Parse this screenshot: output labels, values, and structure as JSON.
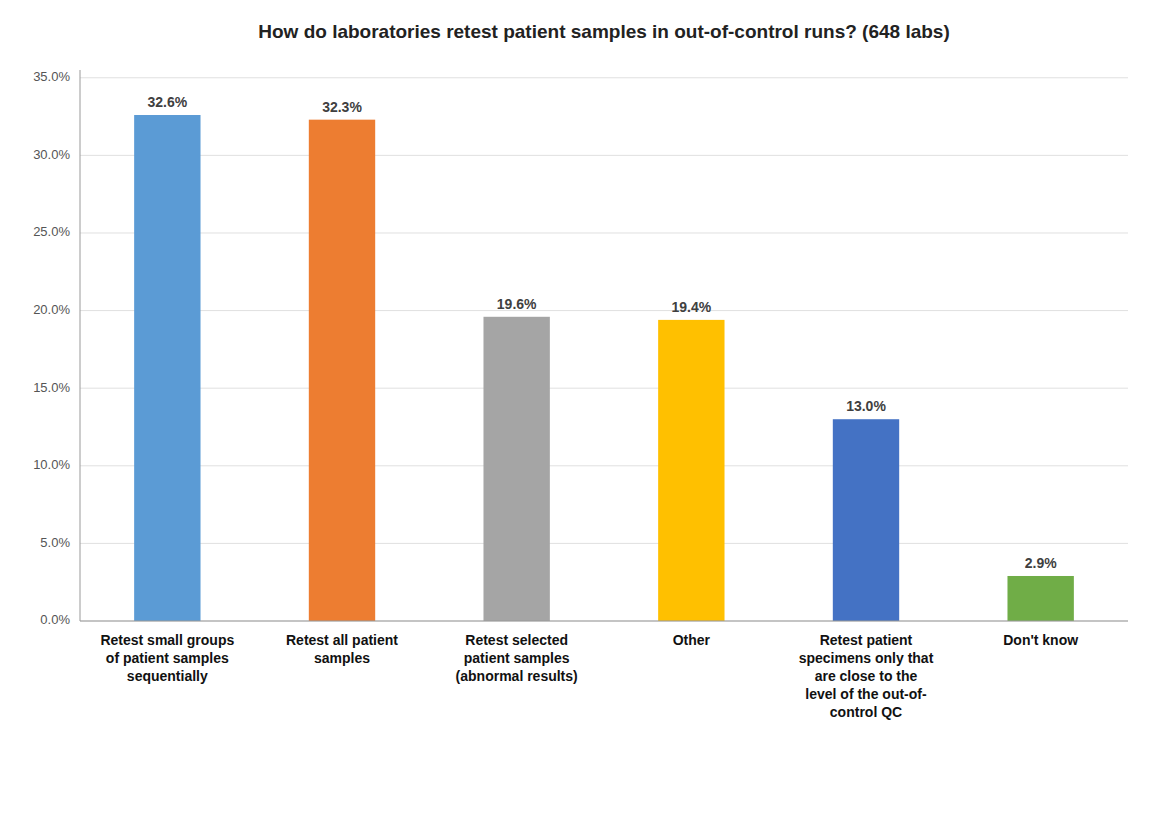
{
  "chart_data": {
    "type": "bar",
    "title": "How do laboratories retest patient samples in out-of-control runs? (648 labs)",
    "categories": [
      "Retest small groups\nof patient samples\nsequentially",
      "Retest all patient\nsamples",
      "Retest selected\npatient samples\n(abnormal results)",
      "Other",
      "Retest patient\nspecimens only that\nare close to the\nlevel of the out-of-\ncontrol QC",
      "Don't know"
    ],
    "values": [
      32.6,
      32.3,
      19.6,
      19.4,
      13.0,
      2.9
    ],
    "value_labels": [
      "32.6%",
      "32.3%",
      "19.6%",
      "19.4%",
      "13.0%",
      "2.9%"
    ],
    "data_labels": true,
    "colors": [
      "#5B9BD5",
      "#ED7D31",
      "#A5A5A5",
      "#FFC000",
      "#4472C4",
      "#70AD47"
    ],
    "ylim": [
      0,
      35.5
    ],
    "yticks": [
      {
        "value": 0,
        "label": "0.0%"
      },
      {
        "value": 5.0,
        "label": "5.0%"
      },
      {
        "value": 10.0,
        "label": "10.0%"
      },
      {
        "value": 15.0,
        "label": "15.0%"
      },
      {
        "value": 20.0,
        "label": "20.0%"
      },
      {
        "value": 25.0,
        "label": "25.0%"
      },
      {
        "value": 30.0,
        "label": "30.0%"
      },
      {
        "value": 35.0,
        "label": "35.0%"
      }
    ],
    "grid": true
  }
}
